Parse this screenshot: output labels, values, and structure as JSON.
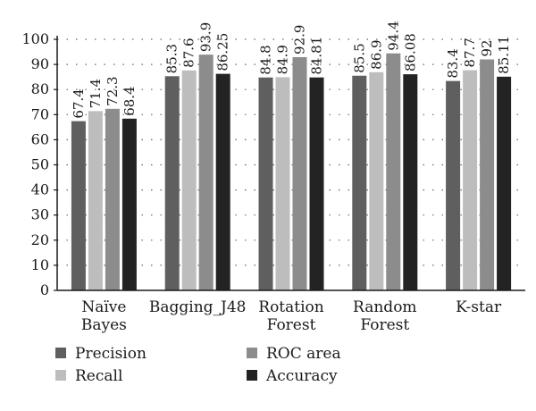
{
  "chart_data": {
    "type": "bar",
    "title": "",
    "xlabel": "",
    "ylabel": "",
    "ylim": [
      0,
      100
    ],
    "yticks": [
      0,
      10,
      20,
      30,
      40,
      50,
      60,
      70,
      80,
      90,
      100
    ],
    "grid": "dotted horizontal",
    "legend_position": "bottom",
    "categories": [
      [
        "Naïve",
        "Bayes"
      ],
      [
        "Bagging_J48"
      ],
      [
        "Rotation",
        "Forest"
      ],
      [
        "Random",
        "Forest"
      ],
      [
        "K-star"
      ]
    ],
    "series": [
      {
        "name": "Precision",
        "color": "#5f5f5f",
        "values": [
          67.4,
          85.3,
          84.8,
          85.5,
          83.4
        ],
        "labels": [
          "67.4",
          "85.3",
          "84.8",
          "85.5",
          "83.4"
        ]
      },
      {
        "name": "Recall",
        "color": "#bdbdbd",
        "values": [
          71.4,
          87.6,
          84.9,
          86.9,
          87.7
        ],
        "labels": [
          "71.4",
          "87.6",
          "84.9",
          "86.9",
          "87.7"
        ]
      },
      {
        "name": "ROC area",
        "color": "#8c8c8c",
        "values": [
          72.3,
          93.9,
          92.9,
          94.4,
          92
        ],
        "labels": [
          "72.3",
          "93.9",
          "92.9",
          "94.4",
          "92"
        ]
      },
      {
        "name": "Accuracy",
        "color": "#232323",
        "values": [
          68.4,
          86.25,
          84.81,
          86.08,
          85.11
        ],
        "labels": [
          "68.4",
          "86.25",
          "84.81",
          "86.08",
          "85.11"
        ]
      }
    ]
  }
}
